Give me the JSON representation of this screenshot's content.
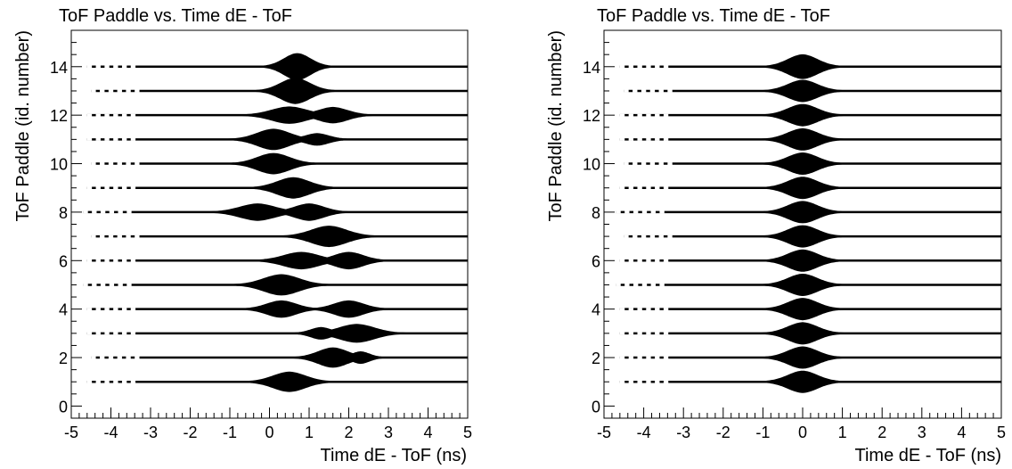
{
  "chart_data": [
    {
      "type": "scatter",
      "title": "ToF Paddle vs. Time dE - ToF",
      "xlabel": "Time dE - ToF (ns)",
      "ylabel": "ToF Paddle (id. number)",
      "xlim": [
        -5,
        5
      ],
      "ylim": [
        -0.5,
        15.5
      ],
      "x_ticks": [
        -5,
        -4,
        -3,
        -2,
        -1,
        0,
        1,
        2,
        3,
        4,
        5
      ],
      "y_ticks": [
        0,
        2,
        4,
        6,
        8,
        10,
        12,
        14
      ],
      "grid": false,
      "legend": "none",
      "color": "#000000",
      "paddles": [
        {
          "id": 1,
          "lobes": [
            {
              "x": 0.5,
              "w": 0.55,
              "h": 0.36
            }
          ],
          "xmin": -4.6,
          "xmax": 5.0
        },
        {
          "id": 2,
          "lobes": [
            {
              "x": 1.6,
              "w": 0.5,
              "h": 0.36
            },
            {
              "x": 2.3,
              "w": 0.3,
              "h": 0.2
            }
          ],
          "xmin": -4.5,
          "xmax": 5.0
        },
        {
          "id": 3,
          "lobes": [
            {
              "x": 2.2,
              "w": 0.6,
              "h": 0.33
            },
            {
              "x": 1.3,
              "w": 0.35,
              "h": 0.2
            }
          ],
          "xmin": -4.6,
          "xmax": 5.0
        },
        {
          "id": 4,
          "lobes": [
            {
              "x": 0.3,
              "w": 0.5,
              "h": 0.3
            },
            {
              "x": 2.0,
              "w": 0.5,
              "h": 0.3
            }
          ],
          "xmin": -4.6,
          "xmax": 5.0
        },
        {
          "id": 5,
          "lobes": [
            {
              "x": 0.3,
              "w": 0.6,
              "h": 0.38
            }
          ],
          "xmin": -4.7,
          "xmax": 5.0
        },
        {
          "id": 6,
          "lobes": [
            {
              "x": 0.8,
              "w": 0.6,
              "h": 0.3
            },
            {
              "x": 2.0,
              "w": 0.5,
              "h": 0.3
            }
          ],
          "xmin": -4.6,
          "xmax": 5.0
        },
        {
          "id": 7,
          "lobes": [
            {
              "x": 1.5,
              "w": 0.6,
              "h": 0.38
            }
          ],
          "xmin": -4.5,
          "xmax": 5.0
        },
        {
          "id": 8,
          "lobes": [
            {
              "x": -0.3,
              "w": 0.6,
              "h": 0.3
            },
            {
              "x": 1.0,
              "w": 0.5,
              "h": 0.3
            }
          ],
          "xmin": -4.7,
          "xmax": 5.0
        },
        {
          "id": 9,
          "lobes": [
            {
              "x": 0.6,
              "w": 0.55,
              "h": 0.38
            }
          ],
          "xmin": -4.6,
          "xmax": 5.0
        },
        {
          "id": 10,
          "lobes": [
            {
              "x": 0.1,
              "w": 0.55,
              "h": 0.38
            }
          ],
          "xmin": -4.5,
          "xmax": 5.0
        },
        {
          "id": 11,
          "lobes": [
            {
              "x": 0.1,
              "w": 0.55,
              "h": 0.38
            },
            {
              "x": 1.2,
              "w": 0.4,
              "h": 0.2
            }
          ],
          "xmin": -4.6,
          "xmax": 5.0
        },
        {
          "id": 12,
          "lobes": [
            {
              "x": 0.5,
              "w": 0.6,
              "h": 0.3
            },
            {
              "x": 1.6,
              "w": 0.5,
              "h": 0.28
            }
          ],
          "xmin": -4.6,
          "xmax": 5.0
        },
        {
          "id": 13,
          "lobes": [
            {
              "x": 0.65,
              "w": 0.5,
              "h": 0.48
            }
          ],
          "xmin": -4.5,
          "xmax": 5.0
        },
        {
          "id": 14,
          "lobes": [
            {
              "x": 0.7,
              "w": 0.45,
              "h": 0.5
            }
          ],
          "xmin": -4.6,
          "xmax": 5.0
        }
      ]
    },
    {
      "type": "scatter",
      "title": "ToF Paddle vs. Time dE - ToF",
      "xlabel": "Time dE - ToF (ns)",
      "ylabel": "ToF Paddle (id. number)",
      "xlim": [
        -5,
        5
      ],
      "ylim": [
        -0.5,
        15.5
      ],
      "x_ticks": [
        -5,
        -4,
        -3,
        -2,
        -1,
        0,
        1,
        2,
        3,
        4,
        5
      ],
      "y_ticks": [
        0,
        2,
        4,
        6,
        8,
        10,
        12,
        14
      ],
      "grid": false,
      "legend": "none",
      "color": "#000000",
      "paddles": [
        {
          "id": 1,
          "lobes": [
            {
              "x": 0.0,
              "w": 0.5,
              "h": 0.4
            }
          ],
          "xmin": -4.6,
          "xmax": 5.0
        },
        {
          "id": 2,
          "lobes": [
            {
              "x": 0.0,
              "w": 0.5,
              "h": 0.4
            }
          ],
          "xmin": -4.6,
          "xmax": 5.0
        },
        {
          "id": 3,
          "lobes": [
            {
              "x": 0.0,
              "w": 0.5,
              "h": 0.4
            }
          ],
          "xmin": -4.6,
          "xmax": 5.0
        },
        {
          "id": 4,
          "lobes": [
            {
              "x": 0.0,
              "w": 0.5,
              "h": 0.4
            }
          ],
          "xmin": -4.6,
          "xmax": 5.0
        },
        {
          "id": 5,
          "lobes": [
            {
              "x": 0.0,
              "w": 0.5,
              "h": 0.4
            }
          ],
          "xmin": -4.7,
          "xmax": 5.0
        },
        {
          "id": 6,
          "lobes": [
            {
              "x": 0.0,
              "w": 0.5,
              "h": 0.4
            }
          ],
          "xmin": -4.6,
          "xmax": 5.0
        },
        {
          "id": 7,
          "lobes": [
            {
              "x": 0.0,
              "w": 0.5,
              "h": 0.4
            }
          ],
          "xmin": -4.5,
          "xmax": 5.0
        },
        {
          "id": 8,
          "lobes": [
            {
              "x": 0.0,
              "w": 0.5,
              "h": 0.4
            }
          ],
          "xmin": -4.7,
          "xmax": 5.0
        },
        {
          "id": 9,
          "lobes": [
            {
              "x": 0.0,
              "w": 0.5,
              "h": 0.4
            }
          ],
          "xmin": -4.6,
          "xmax": 5.0
        },
        {
          "id": 10,
          "lobes": [
            {
              "x": 0.0,
              "w": 0.5,
              "h": 0.4
            }
          ],
          "xmin": -4.5,
          "xmax": 5.0
        },
        {
          "id": 11,
          "lobes": [
            {
              "x": 0.0,
              "w": 0.5,
              "h": 0.4
            }
          ],
          "xmin": -4.6,
          "xmax": 5.0
        },
        {
          "id": 12,
          "lobes": [
            {
              "x": 0.0,
              "w": 0.5,
              "h": 0.4
            }
          ],
          "xmin": -4.6,
          "xmax": 5.0
        },
        {
          "id": 13,
          "lobes": [
            {
              "x": 0.0,
              "w": 0.5,
              "h": 0.4
            }
          ],
          "xmin": -4.5,
          "xmax": 5.0
        },
        {
          "id": 14,
          "lobes": [
            {
              "x": 0.0,
              "w": 0.5,
              "h": 0.45
            }
          ],
          "xmin": -4.6,
          "xmax": 5.0
        }
      ]
    }
  ]
}
